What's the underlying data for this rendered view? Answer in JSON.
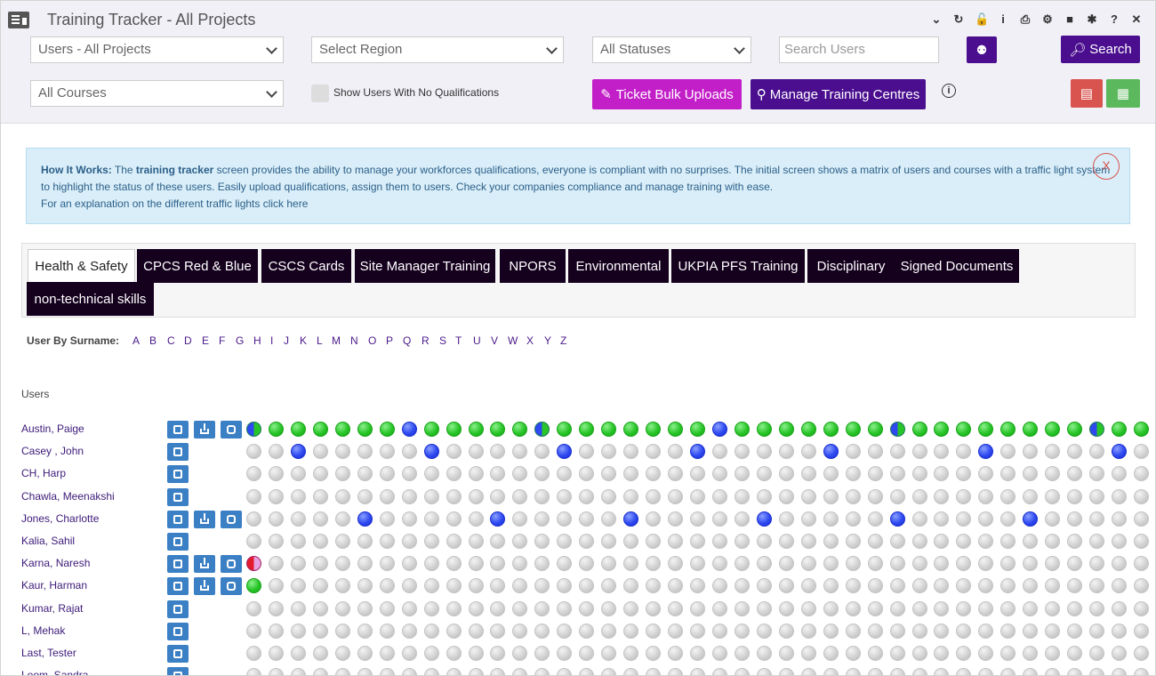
{
  "window": {
    "title": "Training Tracker - All Projects",
    "icons": [
      "chevron-down-icon",
      "refresh-icon",
      "unlock-icon",
      "info-icon",
      "pdf-icon",
      "settings-icon",
      "video-icon",
      "bug-icon",
      "help-icon",
      "close-icon"
    ],
    "icon_glyphs": [
      "⌄",
      "↻",
      "🔓",
      "i",
      "⎙",
      "⚙",
      "■",
      "✱",
      "?",
      "✕"
    ]
  },
  "filters": {
    "users": "Users - All Projects",
    "region": "Select Region",
    "status": "All Statuses",
    "search_placeholder": "Search Users",
    "courses": "All Courses",
    "show_no_quals": "Show Users With No Qualifications",
    "search_label": "Search",
    "ticket_bulk": "Ticket Bulk Uploads",
    "manage_centres": "Manage Training Centres"
  },
  "info": {
    "how_it_works": "How It Works:",
    "text1a": " The ",
    "text1b": "training tracker",
    "text1c": " screen provides the ability to manage your workforces qualifications, everyone is compliant with no surprises. The initial screen shows a matrix of users and courses with a traffic light system to highlight the status of these users. Easily upload qualifications, assign them to users. Check your companies compliance and manage training with ease.",
    "line2": "For an explanation on the different traffic lights click here",
    "close": "X"
  },
  "tabs": [
    "Health & Safety",
    "CPCS Red & Blue",
    "CSCS Cards",
    "Site Manager Training",
    "NPORS",
    "Environmental",
    "UKPIA PFS Training",
    "Disciplinary",
    "Signed Documents",
    "non-technical skills"
  ],
  "surname_label": "User By Surname:",
  "letters": [
    "A",
    "B",
    "C",
    "D",
    "E",
    "F",
    "G",
    "H",
    "I",
    "J",
    "K",
    "L",
    "M",
    "N",
    "O",
    "P",
    "Q",
    "R",
    "S",
    "T",
    "U",
    "V",
    "W",
    "X",
    "Y",
    "Z"
  ],
  "users_heading": "Users",
  "users": [
    {
      "name": "Austin, Paige",
      "actions": [
        "edit",
        "download",
        "share"
      ]
    },
    {
      "name": "Casey , John",
      "actions": [
        "edit"
      ]
    },
    {
      "name": "CH, Harp",
      "actions": [
        "edit"
      ]
    },
    {
      "name": "Chawla, Meenakshi",
      "actions": [
        "edit"
      ]
    },
    {
      "name": "Jones, Charlotte",
      "actions": [
        "edit",
        "download",
        "share"
      ]
    },
    {
      "name": "Kalia, Sahil",
      "actions": [
        "edit"
      ]
    },
    {
      "name": "Karna, Naresh",
      "actions": [
        "edit",
        "download",
        "share"
      ]
    },
    {
      "name": "Kaur, Harman",
      "actions": [
        "edit",
        "download",
        "share"
      ]
    },
    {
      "name": "Kumar, Rajat",
      "actions": [
        "edit"
      ]
    },
    {
      "name": "L, Mehak",
      "actions": [
        "edit"
      ]
    },
    {
      "name": "Last, Tester",
      "actions": [
        "edit"
      ]
    },
    {
      "name": "Loom, Sandra",
      "actions": [
        "edit"
      ]
    }
  ],
  "status_rows": [
    "xggggggbgggggxgggggggbgggggggxggggggggxggggggggxgggggggxggggggg",
    "nnbnnnnnbnnnnnbnnnnnbnnnnnbnnnnnnbnnnnnbnnnnnn",
    "nnnnnnnnnnnnnnnnnnnnnnnnnnnnnnnnnnnnnnnnnn",
    "nnnnnnnnnnnnnnnnnnnnnnnnnnnnnnnnnnnnnnnnnn",
    "nnnnnbnnnnnbnnnnnbnnnnnbnnnnnbnnnnnbnnnnnb",
    "nnnnnnnnnnnnnnnnnnnnnnnnnnnnnnnnnnnnnnnnnn",
    "rnnnnnnnnnnnnnnnnnnnnnnnnnnnnnnnnnnnnnnnnn",
    "gnnnnnnnnnnnnnnnnnnnnnnnnnnnnnnnnnnnnnnnnn",
    "nnnnnnnnnnnnnnnnnnnnnnnnnnnnnnnnnnnnnnnnnn",
    "nnnnnnnnnnnnnnnnnnnnnnnnnnnnnnnnnnnnnnnnnn",
    "nnnnnnnnnnnnnnnnnnnnnnnnnnnnnnnnnnnnnnnnnn",
    "nnnnnnnnnnnnnnnnnnnnnnnnnnnnnnnnnnnnnnnnnn"
  ],
  "colors": {
    "brand_purple": "#4a0e8f",
    "magenta": "#c31fc8",
    "pdf_red": "#d9534f",
    "excel_green": "#5cb85c",
    "tab_dark": "#15001e"
  }
}
